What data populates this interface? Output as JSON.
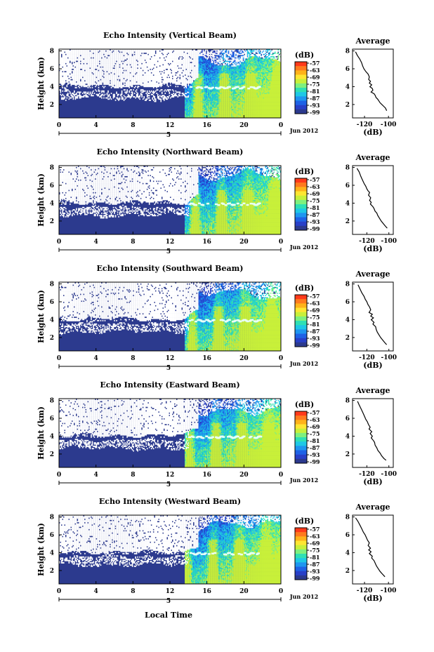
{
  "chart_data": {
    "type": "heatmap",
    "xlabel": "Local Time",
    "xunit_date_label": "5",
    "month_label": "Jun 2012",
    "x_ticks": [
      "0",
      "4",
      "8",
      "12",
      "16",
      "20",
      "0"
    ],
    "xlim": [
      0,
      24
    ],
    "y_ticks": [
      "8",
      "6",
      "4",
      "2"
    ],
    "ylim": [
      0.5,
      8.2
    ],
    "colorbar": {
      "unit": "(dB)",
      "labels": [
        "-57",
        "-63",
        "-69",
        "-75",
        "-81",
        "-87",
        "-93",
        "-99"
      ],
      "colors": [
        "#ff3a1a",
        "#ff7a1e",
        "#ffb21a",
        "#ffe632",
        "#c8f03a",
        "#7ef07e",
        "#2fe0b4",
        "#1ec8e6",
        "#1e96f0",
        "#1e62e6",
        "#2840c8",
        "#2c3a8e"
      ]
    },
    "panels": [
      {
        "title": "Echo Intensity (Vertical Beam)",
        "ylabel": "Height (km)",
        "avg": {
          "title": "Average",
          "xlabel": "(dB)",
          "x_ticks": [
            "-120",
            "-100"
          ],
          "xlim": [
            -130,
            -96
          ],
          "profile": [
            [
              -127.5,
              7.9
            ],
            [
              -126,
              7.5
            ],
            [
              -124,
              7.1
            ],
            [
              -122.5,
              6.7
            ],
            [
              -121.5,
              6.3
            ],
            [
              -120.5,
              6.0
            ],
            [
              -119,
              5.7
            ],
            [
              -117,
              5.4
            ],
            [
              -116,
              5.1
            ],
            [
              -116.5,
              4.8
            ],
            [
              -115,
              4.6
            ],
            [
              -116,
              4.4
            ],
            [
              -114,
              4.2
            ],
            [
              -115.5,
              4.0
            ],
            [
              -113.5,
              3.8
            ],
            [
              -113,
              3.6
            ],
            [
              -114.5,
              3.4
            ],
            [
              -112,
              3.2
            ],
            [
              -111,
              3.0
            ],
            [
              -110.5,
              2.8
            ],
            [
              -109,
              2.6
            ],
            [
              -108,
              2.4
            ],
            [
              -107,
              2.2
            ],
            [
              -105.5,
              2.0
            ],
            [
              -104,
              1.8
            ],
            [
              -102.5,
              1.6
            ],
            [
              -101.5,
              1.3
            ]
          ]
        }
      },
      {
        "title": "Echo Intensity (Northward Beam)",
        "ylabel": "Height (km)",
        "avg": {
          "title": "Average",
          "xlabel": "(dB)",
          "x_ticks": [
            "-120",
            "-100"
          ],
          "xlim": [
            -133,
            -96
          ],
          "profile": [
            [
              -129,
              7.9
            ],
            [
              -127,
              7.5
            ],
            [
              -125.5,
              7.0
            ],
            [
              -124,
              6.6
            ],
            [
              -122.5,
              6.2
            ],
            [
              -121,
              5.9
            ],
            [
              -120,
              5.6
            ],
            [
              -119,
              5.4
            ],
            [
              -117.5,
              5.2
            ],
            [
              -118.5,
              4.9
            ],
            [
              -116.5,
              4.6
            ],
            [
              -117.5,
              4.3
            ],
            [
              -116,
              4.1
            ],
            [
              -116.8,
              3.9
            ],
            [
              -114.5,
              3.6
            ],
            [
              -113.5,
              3.4
            ],
            [
              -112.5,
              3.1
            ],
            [
              -111,
              2.9
            ],
            [
              -110,
              2.6
            ],
            [
              -108.5,
              2.3
            ],
            [
              -107,
              2.0
            ],
            [
              -105,
              1.7
            ],
            [
              -103,
              1.4
            ],
            [
              -101.5,
              1.2
            ]
          ]
        }
      },
      {
        "title": "Echo Intensity (Southward Beam)",
        "ylabel": "Height (km)",
        "avg": {
          "title": "Average",
          "xlabel": "(dB)",
          "x_ticks": [
            "-120",
            "-100"
          ],
          "xlim": [
            -133,
            -96
          ],
          "profile": [
            [
              -128,
              7.9
            ],
            [
              -126.5,
              7.5
            ],
            [
              -124.5,
              7.0
            ],
            [
              -122.5,
              6.6
            ],
            [
              -121.5,
              6.3
            ],
            [
              -120,
              6.0
            ],
            [
              -119,
              5.7
            ],
            [
              -117.5,
              5.4
            ],
            [
              -116.5,
              5.1
            ],
            [
              -118,
              4.8
            ],
            [
              -115,
              4.6
            ],
            [
              -116.5,
              4.4
            ],
            [
              -114,
              4.2
            ],
            [
              -116,
              4.0
            ],
            [
              -113.5,
              3.7
            ],
            [
              -114.5,
              3.5
            ],
            [
              -112,
              3.2
            ],
            [
              -111.5,
              2.9
            ],
            [
              -110.5,
              2.6
            ],
            [
              -109,
              2.3
            ],
            [
              -107.5,
              2.0
            ],
            [
              -105.5,
              1.7
            ],
            [
              -103.5,
              1.4
            ],
            [
              -102,
              1.2
            ]
          ]
        }
      },
      {
        "title": "Echo Intensity (Eastward Beam)",
        "ylabel": "Height (km)",
        "avg": {
          "title": "Average",
          "xlabel": "(dB)",
          "x_ticks": [
            "-120",
            "-100"
          ],
          "xlim": [
            -133,
            -96
          ],
          "profile": [
            [
              -128.5,
              7.9
            ],
            [
              -127,
              7.5
            ],
            [
              -125,
              7.0
            ],
            [
              -123.5,
              6.6
            ],
            [
              -122,
              6.2
            ],
            [
              -121,
              5.9
            ],
            [
              -119.5,
              5.6
            ],
            [
              -118.5,
              5.3
            ],
            [
              -117,
              5.0
            ],
            [
              -118,
              4.8
            ],
            [
              -115.5,
              4.5
            ],
            [
              -117,
              4.3
            ],
            [
              -115,
              4.0
            ],
            [
              -116,
              3.8
            ],
            [
              -114,
              3.5
            ],
            [
              -113,
              3.3
            ],
            [
              -112.5,
              3.0
            ],
            [
              -111,
              2.7
            ],
            [
              -110,
              2.4
            ],
            [
              -108,
              2.1
            ],
            [
              -106.5,
              1.8
            ],
            [
              -104.5,
              1.5
            ],
            [
              -102.5,
              1.3
            ]
          ]
        }
      },
      {
        "title": "Echo Intensity (Westward Beam)",
        "ylabel": "Height (km)",
        "avg": {
          "title": "Average",
          "xlabel": "(dB)",
          "x_ticks": [
            "-120",
            "-100"
          ],
          "xlim": [
            -130,
            -96
          ],
          "profile": [
            [
              -127.5,
              7.9
            ],
            [
              -125.5,
              7.5
            ],
            [
              -123.5,
              7.0
            ],
            [
              -122,
              6.6
            ],
            [
              -121,
              6.3
            ],
            [
              -119.5,
              6.0
            ],
            [
              -118.5,
              5.7
            ],
            [
              -117.5,
              5.4
            ],
            [
              -116,
              5.1
            ],
            [
              -117,
              4.8
            ],
            [
              -115,
              4.5
            ],
            [
              -116.5,
              4.3
            ],
            [
              -114.5,
              4.1
            ],
            [
              -116,
              3.9
            ],
            [
              -113.5,
              3.6
            ],
            [
              -114,
              3.4
            ],
            [
              -112,
              3.1
            ],
            [
              -111,
              2.8
            ],
            [
              -110,
              2.5
            ],
            [
              -108.5,
              2.2
            ],
            [
              -107,
              1.9
            ],
            [
              -105,
              1.6
            ],
            [
              -103,
              1.3
            ]
          ]
        }
      }
    ]
  }
}
